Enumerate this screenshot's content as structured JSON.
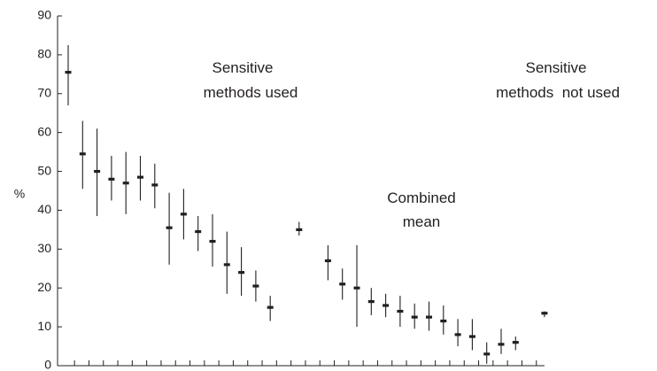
{
  "chart_data": {
    "type": "scatter",
    "title": "",
    "xlabel": "",
    "ylabel": "%",
    "ylim": [
      0,
      90
    ],
    "yticks": [
      0,
      10,
      20,
      30,
      40,
      50,
      60,
      70,
      80,
      90
    ],
    "grid": false,
    "annotations": [
      {
        "lines": [
          "Sensitive",
          "methods used"
        ]
      },
      {
        "lines": [
          "Sensitive",
          "methods  not used"
        ]
      },
      {
        "lines": [
          "Combined",
          "mean"
        ]
      }
    ],
    "points": [
      {
        "index": 0,
        "value": 75.5,
        "low": 67,
        "high": 82.5,
        "group": "sensitive methods used"
      },
      {
        "index": 1,
        "value": 54.5,
        "low": 45.5,
        "high": 63,
        "group": "sensitive methods used"
      },
      {
        "index": 2,
        "value": 50,
        "low": 38.5,
        "high": 61,
        "group": "sensitive methods used"
      },
      {
        "index": 3,
        "value": 48,
        "low": 42.5,
        "high": 54,
        "group": "sensitive methods used"
      },
      {
        "index": 4,
        "value": 47,
        "low": 39,
        "high": 55,
        "group": "sensitive methods used"
      },
      {
        "index": 5,
        "value": 48.5,
        "low": 42.5,
        "high": 54,
        "group": "sensitive methods used"
      },
      {
        "index": 6,
        "value": 46.5,
        "low": 40.5,
        "high": 52,
        "group": "sensitive methods used"
      },
      {
        "index": 7,
        "value": 35.5,
        "low": 26,
        "high": 44.5,
        "group": "sensitive methods used"
      },
      {
        "index": 8,
        "value": 39,
        "low": 32.5,
        "high": 45.5,
        "group": "sensitive methods used"
      },
      {
        "index": 9,
        "value": 34.5,
        "low": 29.5,
        "high": 38.5,
        "group": "sensitive methods used"
      },
      {
        "index": 10,
        "value": 32,
        "low": 25.5,
        "high": 39,
        "group": "sensitive methods used"
      },
      {
        "index": 11,
        "value": 26,
        "low": 18.5,
        "high": 34.5,
        "group": "sensitive methods used"
      },
      {
        "index": 12,
        "value": 24,
        "low": 18,
        "high": 30.5,
        "group": "sensitive methods used"
      },
      {
        "index": 13,
        "value": 20.5,
        "low": 16.5,
        "high": 24.5,
        "group": "sensitive methods used"
      },
      {
        "index": 14,
        "value": 15,
        "low": 11.5,
        "high": 18,
        "group": "sensitive methods used"
      },
      {
        "index": 16,
        "value": 35,
        "low": 33.5,
        "high": 37,
        "group": "combined mean"
      },
      {
        "index": 18,
        "value": 27,
        "low": 22,
        "high": 31,
        "group": "sensitive methods not used"
      },
      {
        "index": 19,
        "value": 21,
        "low": 17,
        "high": 25,
        "group": "sensitive methods not used"
      },
      {
        "index": 20,
        "value": 20,
        "low": 10,
        "high": 31,
        "group": "sensitive methods not used"
      },
      {
        "index": 21,
        "value": 16.5,
        "low": 13,
        "high": 20,
        "group": "sensitive methods not used"
      },
      {
        "index": 22,
        "value": 15.5,
        "low": 12.5,
        "high": 18.5,
        "group": "sensitive methods not used"
      },
      {
        "index": 23,
        "value": 14,
        "low": 10,
        "high": 18,
        "group": "sensitive methods not used"
      },
      {
        "index": 24,
        "value": 12.5,
        "low": 9.5,
        "high": 16,
        "group": "sensitive methods not used"
      },
      {
        "index": 25,
        "value": 12.5,
        "low": 9,
        "high": 16.5,
        "group": "sensitive methods not used"
      },
      {
        "index": 26,
        "value": 11.5,
        "low": 8,
        "high": 15.5,
        "group": "sensitive methods not used"
      },
      {
        "index": 27,
        "value": 8,
        "low": 5,
        "high": 12,
        "group": "sensitive methods not used"
      },
      {
        "index": 28,
        "value": 7.5,
        "low": 4,
        "high": 12,
        "group": "sensitive methods not used"
      },
      {
        "index": 29,
        "value": 3,
        "low": 0.5,
        "high": 6,
        "group": "sensitive methods not used"
      },
      {
        "index": 30,
        "value": 5.5,
        "low": 3,
        "high": 9.5,
        "group": "sensitive methods not used"
      },
      {
        "index": 31,
        "value": 6,
        "low": 4,
        "high": 7.5,
        "group": "sensitive methods not used"
      },
      {
        "index": 33,
        "value": 13.5,
        "low": 12.5,
        "high": 14,
        "group": "combined mean"
      }
    ],
    "x_tick_count": 33
  }
}
